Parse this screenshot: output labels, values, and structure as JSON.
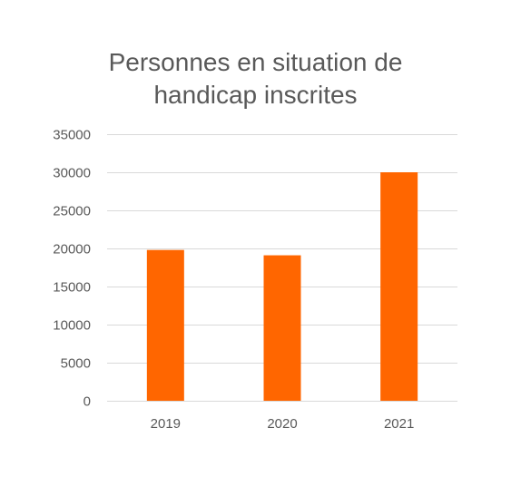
{
  "chart_data": {
    "type": "bar",
    "title_lines": [
      "Personnes en situation de",
      "handicap inscrites"
    ],
    "categories": [
      "2019",
      "2020",
      "2021"
    ],
    "values": [
      19800,
      19100,
      30000
    ],
    "xlabel": "",
    "ylabel": "",
    "ylim": [
      0,
      35000
    ],
    "yticks": [
      "0",
      "5000",
      "10000",
      "15000",
      "20000",
      "25000",
      "30000",
      "35000"
    ],
    "grid": true,
    "legend": "none",
    "bar_color": "#ff6600",
    "grid_color": "#d9d9d9",
    "tick_color": "#595959"
  }
}
